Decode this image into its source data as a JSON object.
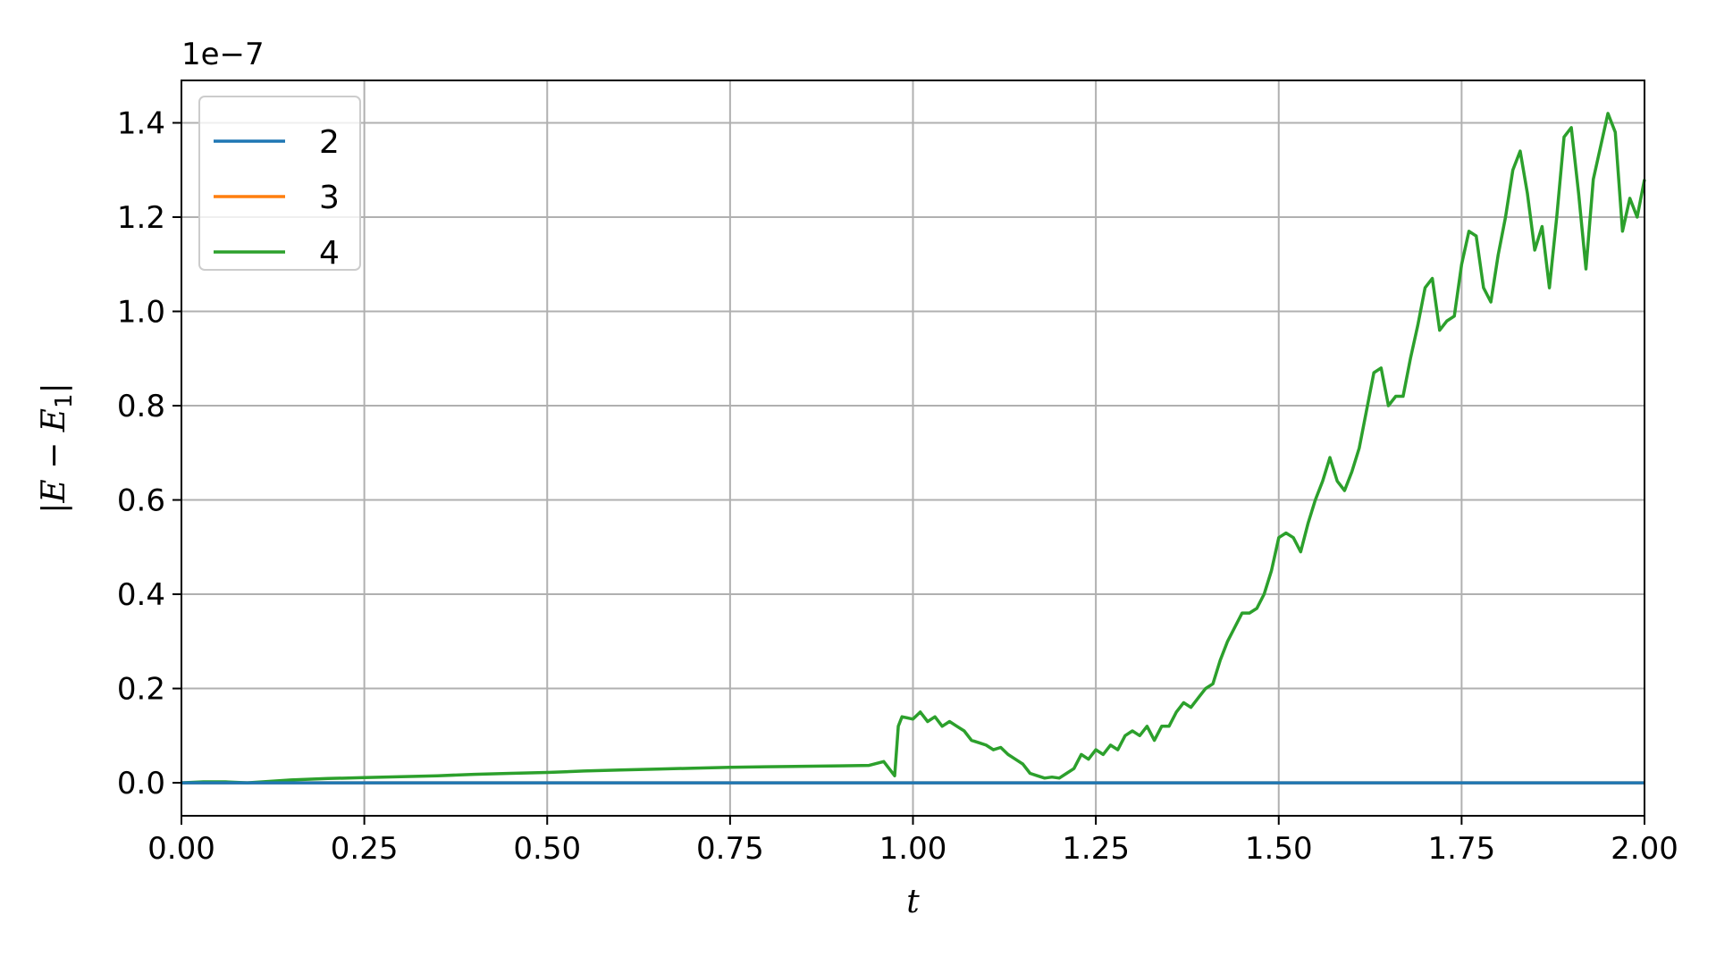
{
  "chart_data": {
    "type": "line",
    "title": "",
    "xlabel": "t",
    "ylabel_parts": {
      "open": "|",
      "E": "E",
      "minus": " − ",
      "E1": "E",
      "sub": "1",
      "close": "|"
    },
    "y_offset_text": "1e−7",
    "xlim": [
      0,
      2
    ],
    "ylim": [
      -0.07,
      1.49
    ],
    "y_scale_note": "values in units of 1e-7",
    "grid": true,
    "legend_position": "upper-left",
    "x_ticks": [
      {
        "value": 0.0,
        "label": "0.00"
      },
      {
        "value": 0.25,
        "label": "0.25"
      },
      {
        "value": 0.5,
        "label": "0.50"
      },
      {
        "value": 0.75,
        "label": "0.75"
      },
      {
        "value": 1.0,
        "label": "1.00"
      },
      {
        "value": 1.25,
        "label": "1.25"
      },
      {
        "value": 1.5,
        "label": "1.50"
      },
      {
        "value": 1.75,
        "label": "1.75"
      },
      {
        "value": 2.0,
        "label": "2.00"
      }
    ],
    "y_ticks": [
      {
        "value": 0.0,
        "label": "0.0"
      },
      {
        "value": 0.2,
        "label": "0.2"
      },
      {
        "value": 0.4,
        "label": "0.4"
      },
      {
        "value": 0.6,
        "label": "0.6"
      },
      {
        "value": 0.8,
        "label": "0.8"
      },
      {
        "value": 1.0,
        "label": "1.0"
      },
      {
        "value": 1.2,
        "label": "1.2"
      },
      {
        "value": 1.4,
        "label": "1.4"
      }
    ],
    "series": [
      {
        "name": "2",
        "color": "#1f77b4",
        "x": [
          0.0,
          2.0
        ],
        "y": [
          0.0,
          0.0
        ]
      },
      {
        "name": "3",
        "color": "#ff7f0e",
        "x": [
          0.0,
          2.0
        ],
        "y": [
          0.0,
          0.0
        ]
      },
      {
        "name": "4",
        "color": "#2ca02c",
        "x": [
          0.0,
          0.03,
          0.06,
          0.09,
          0.12,
          0.15,
          0.2,
          0.25,
          0.3,
          0.35,
          0.4,
          0.45,
          0.5,
          0.55,
          0.6,
          0.65,
          0.7,
          0.75,
          0.8,
          0.85,
          0.9,
          0.94,
          0.96,
          0.975,
          0.98,
          0.985,
          1.0,
          1.01,
          1.02,
          1.03,
          1.04,
          1.05,
          1.06,
          1.07,
          1.08,
          1.09,
          1.1,
          1.11,
          1.12,
          1.13,
          1.14,
          1.15,
          1.16,
          1.17,
          1.18,
          1.19,
          1.2,
          1.21,
          1.22,
          1.23,
          1.24,
          1.25,
          1.26,
          1.27,
          1.28,
          1.29,
          1.3,
          1.31,
          1.32,
          1.33,
          1.34,
          1.35,
          1.36,
          1.37,
          1.38,
          1.39,
          1.4,
          1.41,
          1.42,
          1.43,
          1.44,
          1.45,
          1.46,
          1.47,
          1.48,
          1.49,
          1.5,
          1.51,
          1.52,
          1.53,
          1.54,
          1.55,
          1.56,
          1.57,
          1.58,
          1.59,
          1.6,
          1.61,
          1.62,
          1.63,
          1.64,
          1.65,
          1.66,
          1.67,
          1.68,
          1.69,
          1.7,
          1.71,
          1.72,
          1.73,
          1.74,
          1.75,
          1.76,
          1.77,
          1.78,
          1.79,
          1.8,
          1.81,
          1.82,
          1.83,
          1.84,
          1.85,
          1.86,
          1.87,
          1.88,
          1.89,
          1.9,
          1.91,
          1.92,
          1.93,
          1.94,
          1.95,
          1.96,
          1.97,
          1.98,
          1.99,
          2.0
        ],
        "y": [
          0.0,
          0.002,
          0.002,
          0.0,
          0.003,
          0.006,
          0.009,
          0.011,
          0.013,
          0.015,
          0.018,
          0.02,
          0.022,
          0.025,
          0.027,
          0.029,
          0.031,
          0.033,
          0.034,
          0.035,
          0.036,
          0.037,
          0.045,
          0.015,
          0.12,
          0.14,
          0.135,
          0.15,
          0.13,
          0.14,
          0.12,
          0.13,
          0.12,
          0.11,
          0.09,
          0.085,
          0.08,
          0.07,
          0.075,
          0.06,
          0.05,
          0.04,
          0.02,
          0.015,
          0.01,
          0.012,
          0.01,
          0.02,
          0.03,
          0.06,
          0.05,
          0.07,
          0.06,
          0.08,
          0.07,
          0.1,
          0.11,
          0.1,
          0.12,
          0.09,
          0.12,
          0.12,
          0.15,
          0.17,
          0.16,
          0.18,
          0.2,
          0.21,
          0.26,
          0.3,
          0.33,
          0.36,
          0.36,
          0.37,
          0.4,
          0.45,
          0.52,
          0.53,
          0.52,
          0.49,
          0.55,
          0.6,
          0.64,
          0.69,
          0.64,
          0.62,
          0.66,
          0.71,
          0.79,
          0.87,
          0.88,
          0.8,
          0.82,
          0.82,
          0.9,
          0.97,
          1.05,
          1.07,
          0.96,
          0.98,
          0.99,
          1.1,
          1.17,
          1.16,
          1.05,
          1.02,
          1.12,
          1.2,
          1.3,
          1.34,
          1.25,
          1.13,
          1.18,
          1.05,
          1.2,
          1.37,
          1.39,
          1.25,
          1.09,
          1.28,
          1.35,
          1.42,
          1.38,
          1.17,
          1.24,
          1.2,
          1.28
        ]
      }
    ]
  }
}
